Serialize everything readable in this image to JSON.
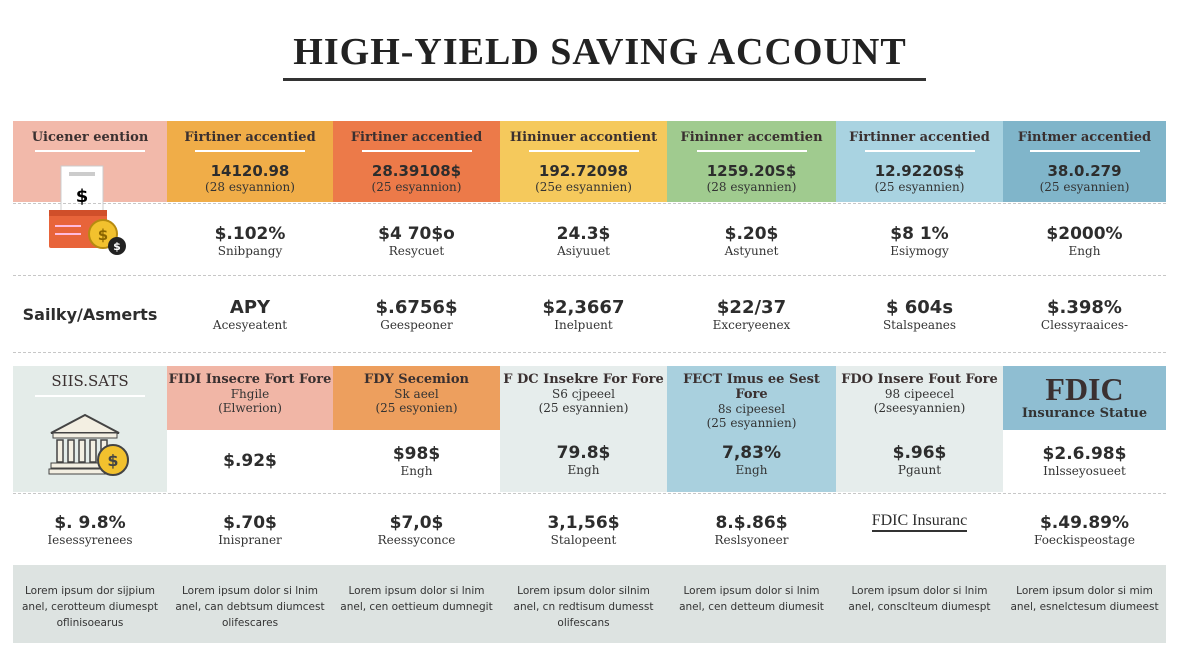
{
  "title": "HIGH-YIELD SAVING ACCOUNT",
  "top_headers": [
    {
      "label": "Uicener eention",
      "color": "#f2b9aa"
    },
    {
      "label": "Firtiner accentied",
      "value": "14120.98",
      "sub": "(28 esyannion)",
      "color": "#f0ad48"
    },
    {
      "label": "Firtiner accentied",
      "value": "28.39108$",
      "sub": "(25 esyannion)",
      "color": "#ec7a49"
    },
    {
      "label": "Hininuer accontient",
      "value": "192.72098",
      "sub": "(25e esyannien)",
      "color": "#f5c95c"
    },
    {
      "label": "Fininner accemtien",
      "value": "1259.20S$",
      "sub": "(28 esyannien)",
      "color": "#a0cb8f"
    },
    {
      "label": "Firtinner accentied",
      "value": "12.9220S$",
      "sub": "(25 esyannien)",
      "color": "#a9d3e1"
    },
    {
      "label": "Fintmer accentied",
      "value": "38.0.279",
      "sub": "(25 esyannien)",
      "color": "#80b5ca"
    }
  ],
  "row2": [
    null,
    {
      "value": "$.102%",
      "sub": "Snibpangy"
    },
    {
      "value": "$4 70$o",
      "sub": "Resycuet"
    },
    {
      "value": "24.3$",
      "sub": "Asiyuuet"
    },
    {
      "value": "$.20$",
      "sub": "Astyunet"
    },
    {
      "value": "$8 1%",
      "sub": "Esiymogy"
    },
    {
      "value": "$2000%",
      "sub": "Engh"
    }
  ],
  "row3": [
    {
      "value": "Sailky/Asmerts"
    },
    {
      "value": "APY",
      "sub": "Acesyeatent"
    },
    {
      "value": "$.6756$",
      "sub": "Geespeoner"
    },
    {
      "value": "$2,3667",
      "sub": "Inelpuent"
    },
    {
      "value": "$22/37",
      "sub": "Exceryeenex"
    },
    {
      "value": "$ 604s",
      "sub": "Stalspeanes"
    },
    {
      "value": "$.398%",
      "sub": "Clessyraaices-"
    }
  ],
  "section2_headers": [
    {
      "label": "SIIS.SATS",
      "color": "#e4ece9"
    },
    {
      "label": "FIDI Insecre Fort Fore",
      "line2": "Fhgile",
      "line3": "(Elwerion)",
      "color": "#f1b6a6"
    },
    {
      "label": "FDY Secemion",
      "line2": "Sk aeel",
      "line3": "(25 esyonien)",
      "color": "#ed9f5e"
    },
    {
      "label": "F DC Insekre For Fore",
      "line2": "S6 cjpeeel",
      "line3": "(25 esyannien)",
      "color": "#e6edec"
    },
    {
      "label": "FECT Imus ee Sest Fore",
      "line2": "8s cipeesel",
      "line3": "(25 esyannien)",
      "color": "#a9d0de"
    },
    {
      "label": "FDO Insere Fout Fore",
      "line2": "98 cipeecel",
      "line3": "(2seesyannien)",
      "color": "#e6edec"
    },
    {
      "label": "FDIC",
      "line2": "Insurance Statue",
      "color": "#8fbed2"
    }
  ],
  "section2_values": [
    null,
    {
      "value": "$.92$"
    },
    {
      "value": "$98$",
      "sub": "Engh"
    },
    {
      "value": "79.8$",
      "sub": "Engh"
    },
    {
      "value": "7,83%",
      "sub": "Engh"
    },
    {
      "value": "$.96$",
      "sub": "Pgaunt"
    },
    {
      "value": "$2.6.98$",
      "sub": "Inlsseyosueet"
    }
  ],
  "row5": [
    {
      "value": "$. 9.8%",
      "sub": "Iesessyrenees"
    },
    {
      "value": "$.70$",
      "sub": "Inispraner"
    },
    {
      "value": "$7,0$",
      "sub": "Reessyconce"
    },
    {
      "value": "3,1,56$",
      "sub": "Stalopeent"
    },
    {
      "value": "8.$.86$",
      "sub": "Reslsyoneer"
    },
    {
      "value": "FDIC Insuranc"
    },
    {
      "value": "$.49.89%",
      "sub": "Foeckispeostage"
    }
  ],
  "lorem": [
    "Lorem ipsum dor sijpium anel, cerotteum diumespt oflinisoearus",
    "Lorem ipsum dolor si lnim anel, can debtsum diumcest olifescares",
    "Lorem ipsum dolor si lnim anel, cen oettieum dumnegit",
    "Lorem ipsum dolor silnim anel, cn redtisum dumesst olifescans",
    "Lorem ipsum dolor si lnim anel, cen detteum diumesit",
    "Lorem ipsum dolor si lnim anel, consclteum diumespt",
    "Lorem ipsum dolor si mim anel, esnelctesum diumeest"
  ],
  "icons": [
    "bill-basket-coin-icon",
    "bank-coin-icon"
  ]
}
